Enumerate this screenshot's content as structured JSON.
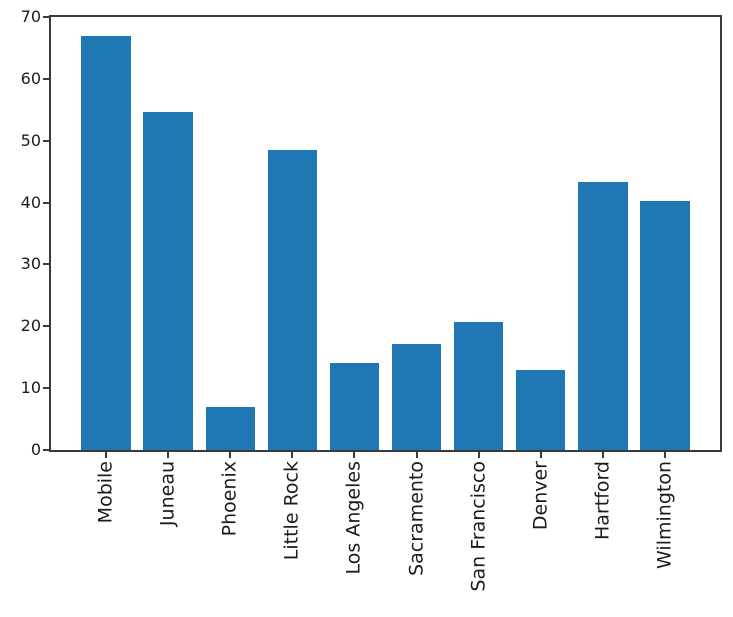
{
  "chart_data": {
    "type": "bar",
    "title": "",
    "xlabel": "",
    "ylabel": "",
    "categories": [
      "Mobile",
      "Juneau",
      "Phoenix",
      "Little Rock",
      "Los Angeles",
      "Sacramento",
      "San Francisco",
      "Denver",
      "Hartford",
      "Wilmington"
    ],
    "values": [
      67.0,
      54.7,
      7.0,
      48.5,
      14.0,
      17.2,
      20.7,
      13.0,
      43.4,
      40.2
    ],
    "ylim": [
      0,
      70
    ],
    "yticks": [
      0,
      10,
      20,
      30,
      40,
      50,
      60,
      70
    ],
    "x_tick_rotation": 90,
    "bar_width_fraction": 0.8,
    "grid": false,
    "legend": null,
    "colors": {
      "bar": "#1f77b4",
      "axis": "#3a3a3a",
      "text": "#1c1c1c",
      "background": "#ffffff"
    }
  }
}
